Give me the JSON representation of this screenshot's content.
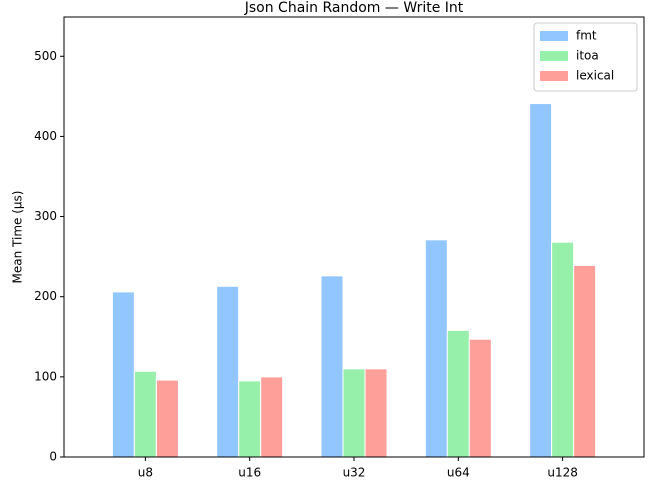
{
  "chart_data": {
    "type": "bar",
    "title": "Json Chain Random — Write Int",
    "y_label": "Mean Time (µs)",
    "categories": [
      "u8",
      "u16",
      "u32",
      "u64",
      "u128"
    ],
    "series": [
      {
        "name": "fmt",
        "color": "#92c6ff",
        "values": [
          206,
          213,
          226,
          271,
          441
        ]
      },
      {
        "name": "itoa",
        "color": "#97f0aa",
        "values": [
          107,
          95,
          110,
          158,
          268
        ]
      },
      {
        "name": "lexical",
        "color": "#ff9f9a",
        "values": [
          96,
          100,
          110,
          147,
          239
        ]
      }
    ],
    "ylim": [
      0,
      549
    ],
    "yticks": [
      0,
      100,
      200,
      300,
      400,
      500
    ],
    "grid": false,
    "legend": "upper right"
  }
}
